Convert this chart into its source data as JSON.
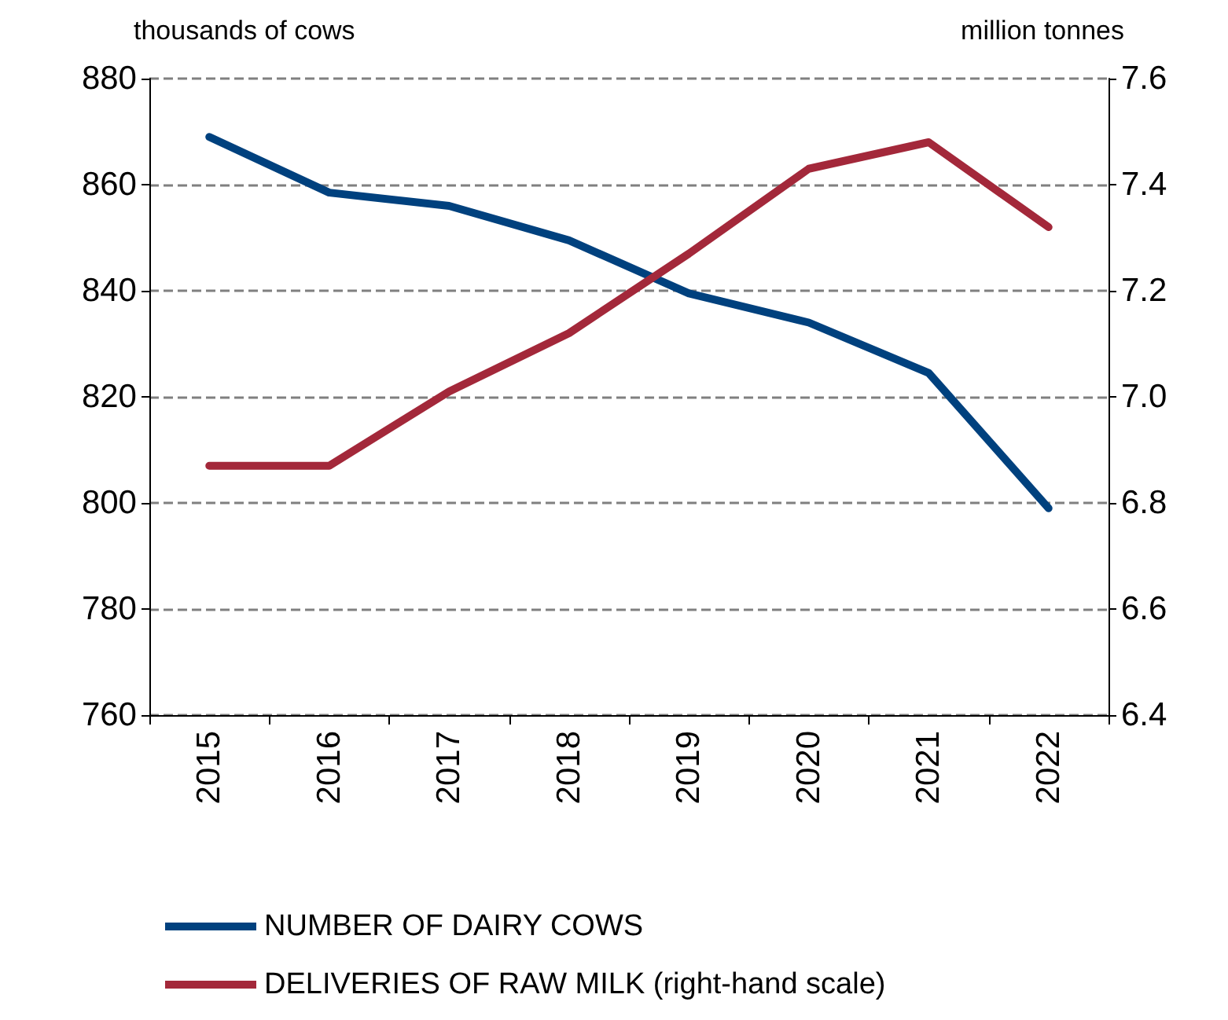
{
  "chart_data": {
    "type": "line",
    "ylabel": "thousands of cows",
    "y2label": "million tonnes",
    "categories": [
      "2015",
      "2016",
      "2017",
      "2018",
      "2019",
      "2020",
      "2021",
      "2022"
    ],
    "series": [
      {
        "name": "NUMBER OF DAIRY COWS",
        "color": "#00417e",
        "values": [
          869,
          858.5,
          856,
          849.5,
          839.5,
          834,
          824.5,
          799
        ]
      },
      {
        "name": "DELIVERIES OF RAW MILK (right-hand scale)",
        "color": "#a3283a",
        "axis": "y2",
        "values": [
          6.87,
          6.87,
          7.01,
          7.12,
          7.27,
          7.43,
          7.48,
          7.32
        ]
      }
    ],
    "ylim": [
      760,
      880
    ],
    "yticks": [
      760,
      780,
      800,
      820,
      840,
      860,
      880
    ],
    "y2lim": [
      6.4,
      7.6
    ],
    "y2ticks": [
      {
        "value": 6.4,
        "label": "6.4"
      },
      {
        "value": 6.6,
        "label": "6.6"
      },
      {
        "value": 6.8,
        "label": "6.8"
      },
      {
        "value": 7.0,
        "label": "7.0"
      },
      {
        "value": 7.2,
        "label": "7.2"
      },
      {
        "value": 7.4,
        "label": "7.4"
      },
      {
        "value": 7.6,
        "label": "7.6"
      }
    ],
    "grid": "y",
    "legend": "bottom",
    "marker": "none",
    "line_style": "solid"
  }
}
